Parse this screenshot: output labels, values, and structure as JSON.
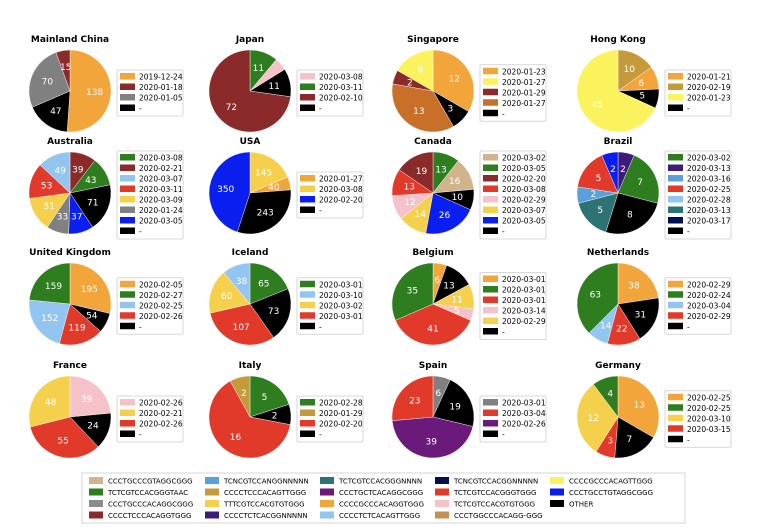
{
  "colors": {
    "tan": "#d2b48c",
    "green": "#2e7d1f",
    "gray": "#808080",
    "darkred": "#8b2a2a",
    "skyblue": "#92c5f0",
    "gold": "#f2b231",
    "lightyellow": "#fbf35d",
    "red": "#e13a2b",
    "slateblue": "#5aa0dc",
    "olive": "#c49a3a",
    "goldyellow": "#f5d04c",
    "purple": "#6a1a7a",
    "orange": "#f2a53b",
    "teal": "#2e7373",
    "lightgray": "#bdbdbd",
    "pink": "#f4c2c8",
    "navy": "#001050",
    "rust": "#c8702a",
    "brown": "#c89050",
    "blue": "#0a1ef0",
    "black": "#000000",
    "bottomlegend_gray": "#8c8c8c",
    "indigo": "#3c1c78"
  },
  "chart_data": [
    {
      "type": "pie",
      "title": "Mainland China",
      "slices": [
        {
          "value": 138,
          "label": "138",
          "color": "orange"
        },
        {
          "value": 47,
          "label": "47",
          "color": "black"
        },
        {
          "value": 70,
          "label": "70",
          "color": "gray"
        },
        {
          "value": 15,
          "label": "15",
          "color": "darkred"
        }
      ],
      "legend": [
        {
          "label": "2019-12-24",
          "color": "orange"
        },
        {
          "label": "2020-01-18",
          "color": "darkred"
        },
        {
          "label": "2020-01-05",
          "color": "gray"
        },
        {
          "label": "-",
          "color": "black"
        }
      ]
    },
    {
      "type": "pie",
      "title": "Japan",
      "slices": [
        {
          "value": 11,
          "label": "11",
          "color": "green"
        },
        {
          "value": 5,
          "label": "",
          "color": "pink"
        },
        {
          "value": 11,
          "label": "11",
          "color": "black"
        },
        {
          "value": 72,
          "label": "72",
          "color": "darkred"
        }
      ],
      "legend": [
        {
          "label": "2020-03-08",
          "color": "pink"
        },
        {
          "label": "2020-03-11",
          "color": "green"
        },
        {
          "label": "2020-02-10",
          "color": "darkred"
        },
        {
          "label": "-",
          "color": "black"
        }
      ]
    },
    {
      "type": "pie",
      "title": "Singapore",
      "slices": [
        {
          "value": 12,
          "label": "12",
          "color": "orange"
        },
        {
          "value": 3,
          "label": "3",
          "color": "black"
        },
        {
          "value": 13,
          "label": "13",
          "color": "rust"
        },
        {
          "value": 2,
          "label": "2",
          "color": "darkred"
        },
        {
          "value": 6,
          "label": "6",
          "color": "lightyellow"
        }
      ],
      "legend": [
        {
          "label": "2020-01-23",
          "color": "orange"
        },
        {
          "label": "2020-01-27",
          "color": "lightyellow"
        },
        {
          "label": "2020-01-29",
          "color": "darkred"
        },
        {
          "label": "2020-01-27",
          "color": "rust"
        },
        {
          "label": "-",
          "color": "black"
        }
      ]
    },
    {
      "type": "pie",
      "title": "Hong Kong",
      "slices": [
        {
          "value": 10,
          "label": "10",
          "color": "olive"
        },
        {
          "value": 6,
          "label": "6",
          "color": "orange"
        },
        {
          "value": 5,
          "label": "5",
          "color": "black"
        },
        {
          "value": 45,
          "label": "45",
          "color": "lightyellow"
        }
      ],
      "legend": [
        {
          "label": "2020-01-21",
          "color": "orange"
        },
        {
          "label": "2020-02-19",
          "color": "olive"
        },
        {
          "label": "2020-01-23",
          "color": "lightyellow"
        },
        {
          "label": "-",
          "color": "black"
        }
      ]
    },
    {
      "type": "pie",
      "title": "Australia",
      "slices": [
        {
          "value": 39,
          "label": "39",
          "color": "darkred"
        },
        {
          "value": 43,
          "label": "43",
          "color": "green"
        },
        {
          "value": 71,
          "label": "71",
          "color": "black"
        },
        {
          "value": 37,
          "label": "37",
          "color": "blue"
        },
        {
          "value": 33,
          "label": "33",
          "color": "gray"
        },
        {
          "value": 51,
          "label": "51",
          "color": "goldyellow"
        },
        {
          "value": 53,
          "label": "53",
          "color": "red"
        },
        {
          "value": 49,
          "label": "49",
          "color": "skyblue"
        }
      ],
      "legend": [
        {
          "label": "2020-03-08",
          "color": "green"
        },
        {
          "label": "2020-02-21",
          "color": "darkred"
        },
        {
          "label": "2020-03-07",
          "color": "skyblue"
        },
        {
          "label": "2020-03-11",
          "color": "red"
        },
        {
          "label": "2020-03-09",
          "color": "goldyellow"
        },
        {
          "label": "2020-01-24",
          "color": "gray"
        },
        {
          "label": "2020-03-05",
          "color": "blue"
        },
        {
          "label": "-",
          "color": "black"
        }
      ]
    },
    {
      "type": "pie",
      "title": "USA",
      "slices": [
        {
          "value": 145,
          "label": "145",
          "color": "goldyellow"
        },
        {
          "value": 40,
          "label": "40",
          "color": "orange"
        },
        {
          "value": 243,
          "label": "243",
          "color": "black"
        },
        {
          "value": 350,
          "label": "350",
          "color": "blue"
        }
      ],
      "legend": [
        {
          "label": "2020-01-27",
          "color": "orange"
        },
        {
          "label": "2020-03-08",
          "color": "goldyellow"
        },
        {
          "label": "2020-02-20",
          "color": "blue"
        },
        {
          "label": "-",
          "color": "black"
        }
      ]
    },
    {
      "type": "pie",
      "title": "Canada",
      "slices": [
        {
          "value": 13,
          "label": "13",
          "color": "green"
        },
        {
          "value": 16,
          "label": "16",
          "color": "tan"
        },
        {
          "value": 10,
          "label": "10",
          "color": "black"
        },
        {
          "value": 26,
          "label": "26",
          "color": "blue"
        },
        {
          "value": 14,
          "label": "14",
          "color": "goldyellow"
        },
        {
          "value": 12,
          "label": "12",
          "color": "pink"
        },
        {
          "value": 13,
          "label": "13",
          "color": "red"
        },
        {
          "value": 19,
          "label": "19",
          "color": "darkred"
        }
      ],
      "legend": [
        {
          "label": "2020-03-02",
          "color": "tan"
        },
        {
          "label": "2020-03-05",
          "color": "green"
        },
        {
          "label": "2020-02-20",
          "color": "darkred"
        },
        {
          "label": "2020-03-08",
          "color": "red"
        },
        {
          "label": "2020-02-29",
          "color": "pink"
        },
        {
          "label": "2020-03-07",
          "color": "goldyellow"
        },
        {
          "label": "2020-03-05",
          "color": "blue"
        },
        {
          "label": "-",
          "color": "black"
        }
      ]
    },
    {
      "type": "pie",
      "title": "Brazil",
      "slices": [
        {
          "value": 2,
          "label": "2",
          "color": "indigo"
        },
        {
          "value": 7,
          "label": "7",
          "color": "green"
        },
        {
          "value": 8,
          "label": "8",
          "color": "black"
        },
        {
          "value": 5,
          "label": "5",
          "color": "teal"
        },
        {
          "value": 2,
          "label": "2",
          "color": "slateblue"
        },
        {
          "value": 5,
          "label": "5",
          "color": "red"
        },
        {
          "value": 2,
          "label": "2",
          "color": "blue"
        }
      ],
      "legend": [
        {
          "label": "2020-03-02",
          "color": "green"
        },
        {
          "label": "2020-03-13",
          "color": "indigo"
        },
        {
          "label": "2020-03-16",
          "color": "slateblue"
        },
        {
          "label": "2020-02-25",
          "color": "red"
        },
        {
          "label": "2020-02-28",
          "color": "skyblue"
        },
        {
          "label": "2020-03-13",
          "color": "teal"
        },
        {
          "label": "2020-03-17",
          "color": "navy"
        },
        {
          "label": "-",
          "color": "black"
        }
      ]
    },
    {
      "type": "pie",
      "title": "United Kingdom",
      "slices": [
        {
          "value": 195,
          "label": "195",
          "color": "orange"
        },
        {
          "value": 54,
          "label": "54",
          "color": "black"
        },
        {
          "value": 119,
          "label": "119",
          "color": "red"
        },
        {
          "value": 152,
          "label": "152",
          "color": "skyblue"
        },
        {
          "value": 159,
          "label": "159",
          "color": "green"
        }
      ],
      "legend": [
        {
          "label": "2020-02-05",
          "color": "orange"
        },
        {
          "label": "2020-02-27",
          "color": "green"
        },
        {
          "label": "2020-02-25",
          "color": "skyblue"
        },
        {
          "label": "2020-02-26",
          "color": "red"
        },
        {
          "label": "-",
          "color": "black"
        }
      ]
    },
    {
      "type": "pie",
      "title": "Iceland",
      "slices": [
        {
          "value": 65,
          "label": "65",
          "color": "green"
        },
        {
          "value": 73,
          "label": "73",
          "color": "black"
        },
        {
          "value": 107,
          "label": "107",
          "color": "red"
        },
        {
          "value": 60,
          "label": "60",
          "color": "goldyellow"
        },
        {
          "value": 38,
          "label": "38",
          "color": "skyblue"
        }
      ],
      "legend": [
        {
          "label": "2020-03-01",
          "color": "green"
        },
        {
          "label": "2020-03-10",
          "color": "skyblue"
        },
        {
          "label": "2020-03-02",
          "color": "goldyellow"
        },
        {
          "label": "2020-03-01",
          "color": "red"
        },
        {
          "label": "-",
          "color": "black"
        }
      ]
    },
    {
      "type": "pie",
      "title": "Belgium",
      "slices": [
        {
          "value": 6,
          "label": "6",
          "color": "orange"
        },
        {
          "value": 13,
          "label": "13",
          "color": "black"
        },
        {
          "value": 11,
          "label": "11",
          "color": "goldyellow"
        },
        {
          "value": 5,
          "label": "5",
          "color": "pink"
        },
        {
          "value": 41,
          "label": "41",
          "color": "red"
        },
        {
          "value": 35,
          "label": "35",
          "color": "green"
        }
      ],
      "legend": [
        {
          "label": "2020-03-01",
          "color": "orange"
        },
        {
          "label": "2020-03-01",
          "color": "green"
        },
        {
          "label": "2020-03-01",
          "color": "red"
        },
        {
          "label": "2020-03-14",
          "color": "pink"
        },
        {
          "label": "2020-02-29",
          "color": "goldyellow"
        },
        {
          "label": "-",
          "color": "black"
        }
      ]
    },
    {
      "type": "pie",
      "title": "Netherlands",
      "slices": [
        {
          "value": 38,
          "label": "38",
          "color": "orange"
        },
        {
          "value": 31,
          "label": "31",
          "color": "black"
        },
        {
          "value": 22,
          "label": "22",
          "color": "red"
        },
        {
          "value": 14,
          "label": "14",
          "color": "skyblue"
        },
        {
          "value": 63,
          "label": "63",
          "color": "green"
        }
      ],
      "legend": [
        {
          "label": "2020-02-29",
          "color": "orange"
        },
        {
          "label": "2020-02-24",
          "color": "green"
        },
        {
          "label": "2020-03-04",
          "color": "skyblue"
        },
        {
          "label": "2020-02-29",
          "color": "red"
        },
        {
          "label": "-",
          "color": "black"
        }
      ]
    },
    {
      "type": "pie",
      "title": "France",
      "slices": [
        {
          "value": 39,
          "label": "39",
          "color": "pink"
        },
        {
          "value": 24,
          "label": "24",
          "color": "black"
        },
        {
          "value": 55,
          "label": "55",
          "color": "red"
        },
        {
          "value": 48,
          "label": "48",
          "color": "goldyellow"
        }
      ],
      "legend": [
        {
          "label": "2020-02-26",
          "color": "pink"
        },
        {
          "label": "2020-02-21",
          "color": "goldyellow"
        },
        {
          "label": "2020-02-26",
          "color": "red"
        },
        {
          "label": "-",
          "color": "black"
        }
      ]
    },
    {
      "type": "pie",
      "title": "Italy",
      "slices": [
        {
          "value": 5,
          "label": "5",
          "color": "green"
        },
        {
          "value": 2,
          "label": "2",
          "color": "black"
        },
        {
          "value": 16,
          "label": "16",
          "color": "red"
        },
        {
          "value": 2,
          "label": "2",
          "color": "olive"
        }
      ],
      "legend": [
        {
          "label": "2020-02-28",
          "color": "green"
        },
        {
          "label": "2020-01-29",
          "color": "olive"
        },
        {
          "label": "2020-02-20",
          "color": "red"
        },
        {
          "label": "-",
          "color": "black"
        }
      ]
    },
    {
      "type": "pie",
      "title": "Spain",
      "slices": [
        {
          "value": 6,
          "label": "6",
          "color": "gray"
        },
        {
          "value": 19,
          "label": "19",
          "color": "black"
        },
        {
          "value": 39,
          "label": "39",
          "color": "purple"
        },
        {
          "value": 23,
          "label": "23",
          "color": "red"
        }
      ],
      "legend": [
        {
          "label": "2020-03-01",
          "color": "gray"
        },
        {
          "label": "2020-03-04",
          "color": "red"
        },
        {
          "label": "2020-02-26",
          "color": "purple"
        },
        {
          "label": "-",
          "color": "black"
        }
      ]
    },
    {
      "type": "pie",
      "title": "Germany",
      "slices": [
        {
          "value": 13,
          "label": "13",
          "color": "orange"
        },
        {
          "value": 7,
          "label": "7",
          "color": "black"
        },
        {
          "value": 3,
          "label": "3",
          "color": "red"
        },
        {
          "value": 12,
          "label": "12",
          "color": "goldyellow"
        },
        {
          "value": 4,
          "label": "4",
          "color": "green"
        }
      ],
      "legend": [
        {
          "label": "2020-02-25",
          "color": "orange"
        },
        {
          "label": "2020-02-25",
          "color": "green"
        },
        {
          "label": "2020-03-10",
          "color": "goldyellow"
        },
        {
          "label": "2020-03-15",
          "color": "red"
        },
        {
          "label": "-",
          "color": "black"
        }
      ]
    }
  ],
  "bottom_legend": [
    {
      "label": "CCCTGCCCGTAGGCGGG",
      "color": "tan"
    },
    {
      "label": "TCTCGTCCACGGGTAAC",
      "color": "green"
    },
    {
      "label": "CCCTGCCCACAGGCGGG",
      "color": "bottomlegend_gray"
    },
    {
      "label": "CCCCTCCCACAGGTGGG",
      "color": "darkred"
    },
    {
      "label": "TCNCGTCCANGGNNNNN",
      "color": "slateblue"
    },
    {
      "label": "CCCCTCCCACAGTTGGG",
      "color": "olive"
    },
    {
      "label": "TTTCGTCCACGTGTGGG",
      "color": "goldyellow"
    },
    {
      "label": "CCCCTCTCACGGNNNNN",
      "color": "indigo"
    },
    {
      "label": "TCTCGTCCACGGGNNNN",
      "color": "teal"
    },
    {
      "label": "CCCTGCTCACAGGCGGG",
      "color": "purple"
    },
    {
      "label": "CCCCGCCCACAGGTGGG",
      "color": "orange"
    },
    {
      "label": "CCCCTCTCACAGTTGGG",
      "color": "skyblue"
    },
    {
      "label": "TCNCGTCCACGGNNNNN",
      "color": "navy"
    },
    {
      "label": "TCTCGTCCACGGGTGGG",
      "color": "red"
    },
    {
      "label": "TCTCGTCCACGTGTGGG",
      "color": "pink"
    },
    {
      "label": "CCCTGGCCCACAGG-GGG",
      "color": "brown"
    },
    {
      "label": "CCCCGCCCACAGTTGGG",
      "color": "lightyellow"
    },
    {
      "label": "CCCTGCCTGTAGGCGGG",
      "color": "blue"
    },
    {
      "label": "OTHER",
      "color": "black"
    }
  ]
}
